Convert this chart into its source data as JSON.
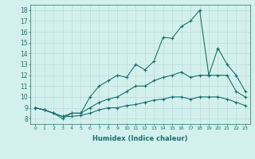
{
  "xlabel": "Humidex (Indice chaleur)",
  "bg_color": "#d4f0ec",
  "line_color": "#1a7070",
  "grid_color": "#b8ddd8",
  "xlim": [
    -0.5,
    23.5
  ],
  "ylim": [
    7.5,
    18.5
  ],
  "xticks": [
    0,
    1,
    2,
    3,
    4,
    5,
    6,
    7,
    8,
    9,
    10,
    11,
    12,
    13,
    14,
    15,
    16,
    17,
    18,
    19,
    20,
    21,
    22,
    23
  ],
  "yticks": [
    8,
    9,
    10,
    11,
    12,
    13,
    14,
    15,
    16,
    17,
    18
  ],
  "series": [
    [
      9.0,
      8.8,
      8.5,
      8.0,
      8.5,
      8.5,
      10.0,
      11.0,
      11.5,
      12.0,
      11.8,
      13.0,
      12.5,
      13.3,
      15.5,
      15.4,
      16.5,
      17.0,
      18.0,
      12.0,
      14.5,
      13.0,
      12.0,
      10.5
    ],
    [
      9.0,
      8.8,
      8.5,
      8.2,
      8.5,
      8.5,
      9.0,
      9.5,
      9.8,
      10.0,
      10.5,
      11.0,
      11.0,
      11.5,
      11.8,
      12.0,
      12.3,
      11.8,
      12.0,
      12.0,
      12.0,
      12.0,
      10.5,
      10.0
    ],
    [
      9.0,
      8.8,
      8.5,
      8.2,
      8.2,
      8.3,
      8.5,
      8.8,
      9.0,
      9.0,
      9.2,
      9.3,
      9.5,
      9.7,
      9.8,
      10.0,
      10.0,
      9.8,
      10.0,
      10.0,
      10.0,
      9.8,
      9.5,
      9.2
    ]
  ]
}
